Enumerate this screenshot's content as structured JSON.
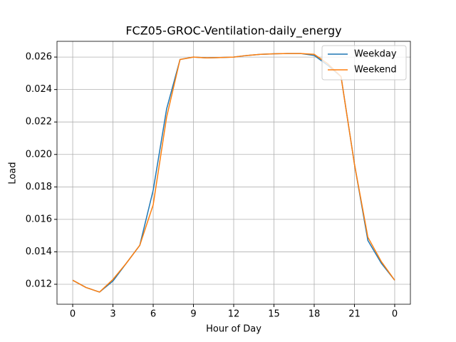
{
  "chart_data": {
    "type": "line",
    "title": "FCZ05-GROC-Ventilation-daily_energy",
    "xlabel": "Hour of Day",
    "ylabel": "Load",
    "x": [
      0,
      1,
      2,
      3,
      4,
      5,
      6,
      7,
      8,
      9,
      10,
      11,
      12,
      13,
      14,
      15,
      16,
      17,
      18,
      19,
      20,
      21,
      22,
      23,
      24
    ],
    "series": [
      {
        "name": "Weekday",
        "color": "#1f77b4",
        "values": [
          0.01225,
          0.0118,
          0.01152,
          0.0122,
          0.0133,
          0.0144,
          0.0178,
          0.0228,
          0.02585,
          0.026,
          0.02595,
          0.02597,
          0.026,
          0.0261,
          0.02617,
          0.0262,
          0.02622,
          0.02622,
          0.0261,
          0.0255,
          0.0248,
          0.0194,
          0.0147,
          0.0133,
          0.01225
        ]
      },
      {
        "name": "Weekend",
        "color": "#ff7f0e",
        "values": [
          0.01225,
          0.0118,
          0.01152,
          0.0123,
          0.0133,
          0.0144,
          0.0169,
          0.0223,
          0.02585,
          0.026,
          0.02595,
          0.02597,
          0.026,
          0.0261,
          0.02617,
          0.0262,
          0.02622,
          0.02622,
          0.02617,
          0.0256,
          0.0248,
          0.0194,
          0.0149,
          0.0134,
          0.01225
        ]
      }
    ],
    "xlim": [
      -1.17,
      25.17
    ],
    "xticks": [
      0,
      3,
      6,
      9,
      12,
      15,
      18,
      21,
      {
        "value": 24,
        "label": "0"
      }
    ],
    "ylim": [
      0.01077,
      0.02697
    ],
    "yticks": [
      0.012,
      0.014,
      0.016,
      0.018,
      {
        "value": 0.02,
        "label": "0.020"
      },
      0.022,
      0.024,
      0.026
    ],
    "grid": true,
    "legend": "upper right"
  }
}
